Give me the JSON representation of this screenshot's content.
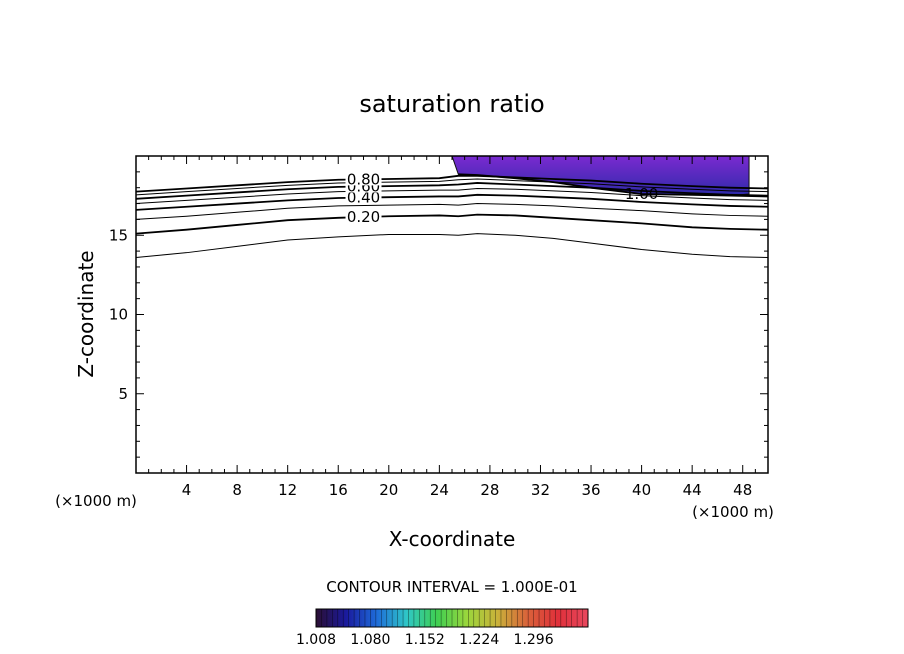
{
  "chart_data": {
    "type": "contour",
    "title": "saturation ratio",
    "xlabel": "X-coordinate",
    "ylabel": "Z-coordinate",
    "x_unit_label": "(×1000 m)",
    "x_unit_label_right": "(×1000 m)",
    "xlim": [
      0,
      50
    ],
    "ylim": [
      0,
      20
    ],
    "xticks": [
      4,
      8,
      12,
      16,
      20,
      24,
      28,
      32,
      36,
      40,
      44,
      48
    ],
    "yticks": [
      5,
      10,
      15
    ],
    "contour_interval_text": "CONTOUR INTERVAL = 1.000E-01",
    "contour_x": [
      0,
      4,
      8,
      12,
      16,
      20,
      24,
      25.5,
      27,
      30,
      33,
      36,
      40,
      44,
      47,
      50
    ],
    "contours": [
      {
        "level": 0.1,
        "label": "",
        "z": [
          13.6,
          13.9,
          14.3,
          14.7,
          14.9,
          15.05,
          15.05,
          15.0,
          15.1,
          15.0,
          14.8,
          14.5,
          14.1,
          13.8,
          13.65,
          13.6
        ],
        "bold": false
      },
      {
        "level": 0.2,
        "label": "0.20",
        "z": [
          15.1,
          15.35,
          15.65,
          15.95,
          16.1,
          16.2,
          16.25,
          16.2,
          16.3,
          16.25,
          16.1,
          15.95,
          15.75,
          15.5,
          15.4,
          15.35
        ],
        "bold": true
      },
      {
        "level": 0.3,
        "label": "",
        "z": [
          16.0,
          16.2,
          16.45,
          16.7,
          16.85,
          16.9,
          16.95,
          16.9,
          17.0,
          16.95,
          16.85,
          16.7,
          16.55,
          16.35,
          16.25,
          16.2
        ],
        "bold": false
      },
      {
        "level": 0.4,
        "label": "0.40",
        "z": [
          16.6,
          16.8,
          17.0,
          17.2,
          17.35,
          17.4,
          17.45,
          17.45,
          17.55,
          17.5,
          17.4,
          17.3,
          17.1,
          16.95,
          16.85,
          16.8
        ],
        "bold": true
      },
      {
        "level": 0.5,
        "label": "",
        "z": [
          17.0,
          17.2,
          17.4,
          17.6,
          17.75,
          17.8,
          17.85,
          17.85,
          17.95,
          17.9,
          17.8,
          17.7,
          17.5,
          17.35,
          17.25,
          17.2
        ],
        "bold": false
      },
      {
        "level": 0.6,
        "label": "0.60",
        "z": [
          17.3,
          17.5,
          17.7,
          17.9,
          18.05,
          18.1,
          18.15,
          18.2,
          18.3,
          18.2,
          18.1,
          18.0,
          17.8,
          17.65,
          17.55,
          17.5
        ],
        "bold": true
      },
      {
        "level": 0.7,
        "label": "",
        "z": [
          17.55,
          17.75,
          17.95,
          18.15,
          18.3,
          18.35,
          18.4,
          18.5,
          18.55,
          18.45,
          18.35,
          18.25,
          18.05,
          17.9,
          17.8,
          17.75
        ],
        "bold": false
      },
      {
        "level": 0.8,
        "label": "0.80",
        "z": [
          17.75,
          17.95,
          18.15,
          18.35,
          18.5,
          18.55,
          18.6,
          18.75,
          18.75,
          18.65,
          18.55,
          18.45,
          18.25,
          18.1,
          18.0,
          17.95
        ],
        "bold": true
      },
      {
        "level": 1.0,
        "label": "1.00",
        "z": [
          null,
          null,
          null,
          null,
          null,
          null,
          null,
          18.85,
          18.8,
          18.6,
          18.35,
          18.0,
          17.6,
          17.55,
          17.5,
          17.45
        ],
        "bold": true
      }
    ],
    "shaded_region": {
      "x_start": 25,
      "x_end": 48.5,
      "description_level": "above 1.00"
    },
    "colorbar": {
      "tick_labels": [
        "1.008",
        "1.080",
        "1.152",
        "1.224",
        "1.296"
      ],
      "min": 1.008,
      "max": 1.368,
      "colors": [
        "#2b0f33",
        "#1a1a9e",
        "#1e6bd9",
        "#2fc7c7",
        "#3fcf52",
        "#9bd63c",
        "#c9b23a",
        "#d9623a",
        "#e0303a",
        "#e8485e"
      ]
    },
    "grid": false
  }
}
